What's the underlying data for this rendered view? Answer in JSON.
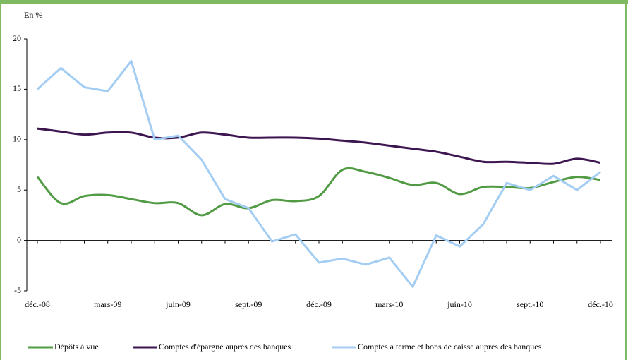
{
  "chart_data": {
    "type": "line",
    "y_label": "En %",
    "categories": [
      "déc.-08",
      null,
      null,
      "mars-09",
      null,
      null,
      "juin-09",
      null,
      null,
      "sept.-09",
      null,
      null,
      "déc.-09",
      null,
      null,
      "mars-10",
      null,
      null,
      "juin-10",
      null,
      null,
      "sept.-10",
      null,
      null,
      "déc.-10"
    ],
    "series": [
      {
        "name": "Dépôts à vue",
        "color": "#529b45",
        "smooth": true,
        "values": [
          6.3,
          3.7,
          4.4,
          4.5,
          4.1,
          3.7,
          3.7,
          2.5,
          3.6,
          3.2,
          4.0,
          3.9,
          4.4,
          7.0,
          6.8,
          6.2,
          5.5,
          5.7,
          4.6,
          5.3,
          5.3,
          5.2,
          5.8,
          6.3,
          6.0
        ]
      },
      {
        "name": "Comptes d'épargne auprès des banques",
        "color": "#3d1650",
        "smooth": true,
        "values": [
          11.1,
          10.8,
          10.5,
          10.7,
          10.7,
          10.2,
          10.2,
          10.7,
          10.5,
          10.2,
          10.2,
          10.2,
          10.1,
          9.9,
          9.7,
          9.4,
          9.1,
          8.8,
          8.3,
          7.8,
          7.8,
          7.7,
          7.6,
          8.1,
          7.7
        ]
      },
      {
        "name": "Comptes à terme et bons de caisse auprés des banques",
        "color": "#a3cdf2",
        "smooth": false,
        "values": [
          15.0,
          17.1,
          15.2,
          14.8,
          17.8,
          10.0,
          10.4,
          8.0,
          4.1,
          3.2,
          -0.1,
          0.6,
          -2.2,
          -1.8,
          -2.4,
          -1.7,
          -4.6,
          0.5,
          -0.6,
          1.6,
          5.7,
          5.0,
          6.4,
          5.0,
          6.8
        ]
      }
    ],
    "ylim": [
      -5,
      20
    ],
    "yticks": [
      -5,
      0,
      5,
      10,
      15,
      20
    ],
    "legend": "bottom"
  }
}
